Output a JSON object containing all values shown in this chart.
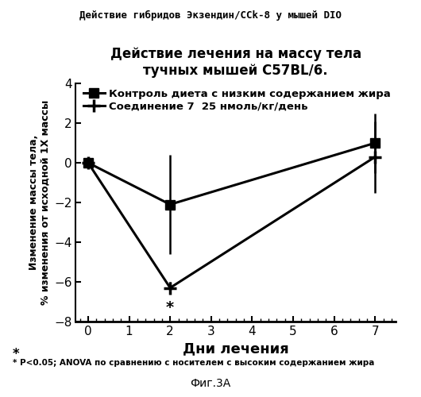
{
  "super_title": "Действие гибридов Экзендин/CCk-8 у мышей DIO",
  "title_line1": "Действие лечения на массу тела",
  "title_line2": "тучных мышей C57BL/6.",
  "xlabel": "Дни лечения",
  "ylabel_line1": "Изменение массы тела,",
  "ylabel_line2": "% изменения от исходной 1Х массы",
  "figcaption": "Фиг.3А",
  "footnote": "P<0.05; ANOVA по сравнению с носителем с высоким содержанием жира",
  "footnote_star": "*",
  "legend1": "Контроль диета с низким содержанием жира",
  "legend2": "Соединение 7  25 нмоль/кг/день",
  "series1_x": [
    0,
    2,
    7
  ],
  "series1_y": [
    0.0,
    -2.1,
    1.0
  ],
  "series1_yerr": [
    0.0,
    2.5,
    1.5
  ],
  "series2_x": [
    0,
    2,
    7
  ],
  "series2_y": [
    0.0,
    -6.3,
    0.3
  ],
  "series2_yerr": [
    0.0,
    0.3,
    1.8
  ],
  "xlim": [
    -0.3,
    7.5
  ],
  "ylim": [
    -8,
    4
  ],
  "yticks": [
    4,
    2,
    0,
    -2,
    -4,
    -6,
    -8
  ],
  "xticks": [
    0,
    1,
    2,
    3,
    4,
    5,
    6,
    7
  ],
  "star_x": 2.0,
  "star_y": -6.9,
  "color": "#000000",
  "background": "#ffffff"
}
